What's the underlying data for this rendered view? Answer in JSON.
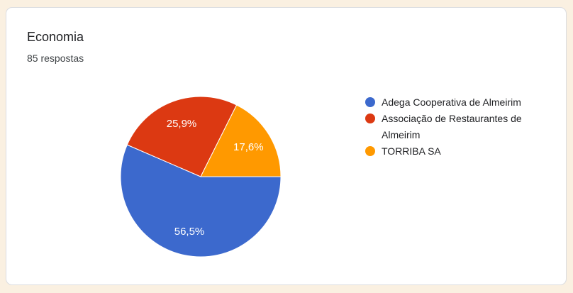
{
  "theme": {
    "page_bg": "#faf0e1",
    "card_bg": "#ffffff",
    "card_border": "#dadce0",
    "title_color": "#202124",
    "subtitle_color": "#3c4043",
    "legend_text_color": "#202124",
    "slice_label_color": "#ffffff"
  },
  "card": {
    "title": "Economia",
    "responses_label": "85 respostas"
  },
  "chart_data": {
    "type": "pie",
    "title": "Economia",
    "subtitle": "85 respostas",
    "legend_position": "right",
    "direction": "clockwise",
    "start_angle_deg_from_east": 0,
    "label_radius_fraction": 0.7,
    "categories": [
      "Adega Cooperativa de Almeirim",
      "Associação de Restaurantes de Almeirim",
      "TORRIBA SA"
    ],
    "values": [
      56.5,
      25.9,
      17.6
    ],
    "labels": [
      "56,5%",
      "25,9%",
      "17,6%"
    ],
    "colors": [
      "#3c69cd",
      "#dc3912",
      "#ff9900"
    ]
  }
}
